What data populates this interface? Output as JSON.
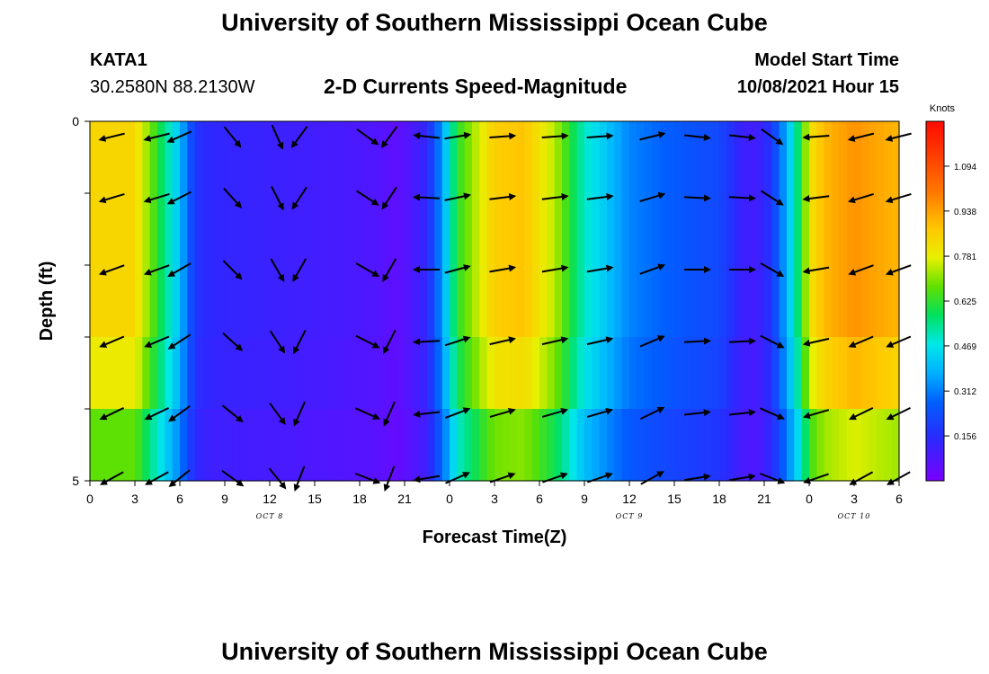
{
  "header": {
    "title_top": "University of Southern Mississippi Ocean Cube",
    "title_bottom": "University of Southern Mississippi Ocean Cube",
    "station": "KATA1",
    "coords": "30.2580N  88.2130W",
    "plot_title": "2-D Currents Speed-Magnitude",
    "model_start_label": "Model Start Time",
    "model_start_value": "10/08/2021 Hour 15"
  },
  "chart_data": {
    "type": "heatmap",
    "title": "2-D Currents Speed-Magnitude",
    "xlabel": "Forecast Time(Z)",
    "ylabel": "Depth (ft)",
    "x_tick_labels": [
      "0",
      "3",
      "6",
      "9",
      "12",
      "15",
      "18",
      "21",
      "0",
      "3",
      "6",
      "9",
      "12",
      "15",
      "18",
      "21",
      "0",
      "3",
      "6"
    ],
    "date_labels": [
      {
        "text": "OCT 8",
        "hour": 12
      },
      {
        "text": "OCT 9",
        "hour": 36
      },
      {
        "text": "OCT 10",
        "hour": 51
      }
    ],
    "x_range_hours": [
      0,
      54
    ],
    "y_tick_labels": [
      "0",
      "5"
    ],
    "ylim": [
      0,
      5
    ],
    "colorbar": {
      "unit": "Knots",
      "range": [
        0,
        1.25
      ],
      "tick_labels": [
        "1.094",
        "0.938",
        "0.781",
        "0.625",
        "0.469",
        "0.312",
        "0.156"
      ],
      "tick_values": [
        1.094,
        0.938,
        0.781,
        0.625,
        0.469,
        0.312,
        0.156
      ]
    },
    "depth_layers": 5,
    "speed_profile_hours": [
      0,
      3,
      4.5,
      6,
      7,
      8,
      12,
      16,
      19,
      20.5,
      21.5,
      22.5,
      23.5,
      24.5,
      27,
      29,
      31,
      33,
      36,
      39,
      42,
      43.5,
      44.5,
      45.5,
      46.5,
      47.5,
      48,
      49,
      51,
      54
    ],
    "speed_profile_knots": [
      0.84,
      0.84,
      0.62,
      0.4,
      0.18,
      0.14,
      0.12,
      0.1,
      0.08,
      0.05,
      0.09,
      0.14,
      0.35,
      0.62,
      0.86,
      0.88,
      0.74,
      0.5,
      0.32,
      0.26,
      0.22,
      0.12,
      0.1,
      0.18,
      0.38,
      0.62,
      0.8,
      0.9,
      0.96,
      0.9
    ],
    "arrow_hours": [
      1.5,
      4.5,
      6,
      9.5,
      12.5,
      14,
      18.5,
      20,
      22.5,
      24.5,
      27.5,
      31,
      34,
      37.5,
      40.5,
      43.5,
      45.5,
      48.5,
      51.5,
      54
    ],
    "arrow_angles_deg": [
      200,
      200,
      210,
      315,
      300,
      240,
      330,
      240,
      180,
      15,
      10,
      10,
      10,
      20,
      0,
      0,
      330,
      190,
      200,
      200
    ]
  }
}
